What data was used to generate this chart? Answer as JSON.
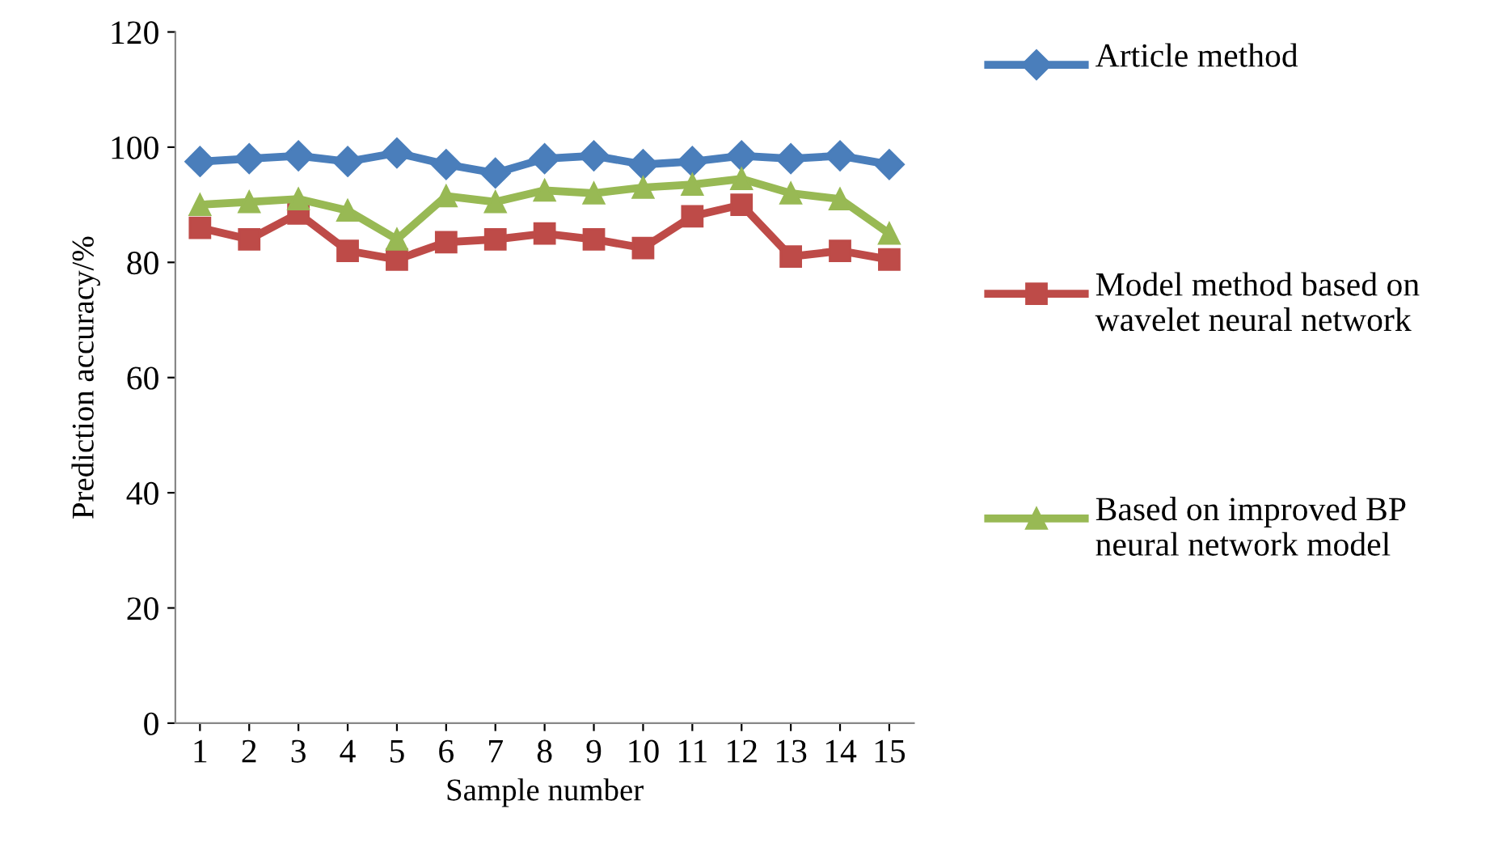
{
  "chart_data": {
    "type": "line",
    "xlabel": "Sample number",
    "ylabel": "Prediction accuracy/%",
    "categories": [
      "1",
      "2",
      "3",
      "4",
      "5",
      "6",
      "7",
      "8",
      "9",
      "10",
      "11",
      "12",
      "13",
      "14",
      "15"
    ],
    "series": [
      {
        "name": "Article method",
        "color": "#4a7ebb",
        "marker": "diamond",
        "values": [
          97.5,
          98,
          98.5,
          97.5,
          99,
          97,
          95.5,
          98,
          98.5,
          97,
          97.5,
          98.5,
          98,
          98.5,
          97
        ]
      },
      {
        "name": "Model method based on wavelet neural network",
        "color": "#be4b48",
        "marker": "square",
        "values": [
          86,
          84,
          88.5,
          82,
          80.5,
          83.5,
          84,
          85,
          84,
          82.5,
          88,
          90,
          81,
          82,
          80.5
        ]
      },
      {
        "name": "Based on improved BP neural network model",
        "color": "#98b954",
        "marker": "triangle",
        "values": [
          90,
          90.5,
          91,
          89,
          84,
          91.5,
          90.5,
          92.5,
          92,
          93,
          93.5,
          94.5,
          92,
          91,
          85
        ]
      }
    ],
    "ylim": [
      0,
      120
    ],
    "yticks": [
      0,
      20,
      40,
      60,
      80,
      100,
      120
    ],
    "grid": false,
    "legend": "right",
    "line_style": "solid"
  }
}
